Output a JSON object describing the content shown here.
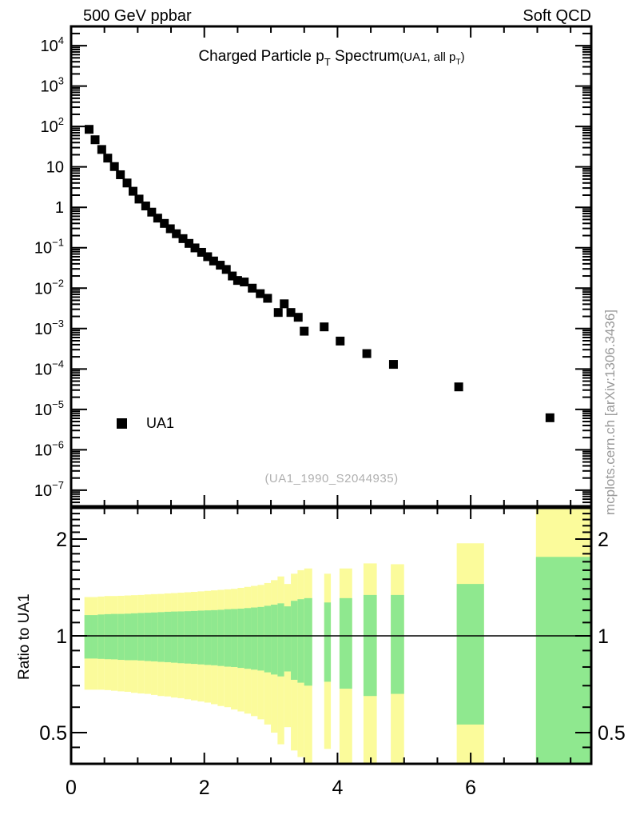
{
  "header": {
    "left": "500 GeV ppbar",
    "right": "Soft QCD"
  },
  "title": {
    "main": "Charged Particle p_T_ Spectrum",
    "note": "(UA1, all p_T_)"
  },
  "legend": {
    "label": "UA1"
  },
  "watermark": "(UA1_1990_S2044935)",
  "side_note": "mcplots.cern.ch [arXiv:1306.3436]",
  "ratio_axis_title": "Ratio to UA1",
  "colors": {
    "marker": "#000000",
    "band_inner": "#8fe88f",
    "band_outer": "#fbfb9b",
    "watermark": "#b0b0b0",
    "side_note": "#999999",
    "frame": "#000000"
  },
  "chart_data": {
    "type": "scatter",
    "title": "Charged Particle pT Spectrum (UA1, all pT)",
    "xlabel": "",
    "x_range": [
      0,
      7.81
    ],
    "x_axis": {
      "ticks": [
        0,
        2,
        4,
        6
      ],
      "tick_labels": [
        "0",
        "2",
        "4",
        "6"
      ],
      "minor_step": 0.5
    },
    "spectrum": {
      "y_scale": "log",
      "y_range": [
        4e-08,
        30000.0
      ],
      "y_tick_exponents": [
        4,
        3,
        2,
        1,
        0,
        -1,
        -2,
        -3,
        -4,
        -5,
        -6,
        -7
      ],
      "series": [
        {
          "name": "UA1",
          "marker": "square",
          "points": [
            [
              0.27,
              85
            ],
            [
              0.36,
              47
            ],
            [
              0.46,
              27
            ],
            [
              0.55,
              16.5
            ],
            [
              0.65,
              10.2
            ],
            [
              0.74,
              6.4
            ],
            [
              0.84,
              4.0
            ],
            [
              0.93,
              2.5
            ],
            [
              1.02,
              1.6
            ],
            [
              1.12,
              1.08
            ],
            [
              1.21,
              0.76
            ],
            [
              1.3,
              0.54
            ],
            [
              1.4,
              0.4
            ],
            [
              1.49,
              0.295
            ],
            [
              1.58,
              0.222
            ],
            [
              1.68,
              0.168
            ],
            [
              1.77,
              0.128
            ],
            [
              1.86,
              0.099
            ],
            [
              1.96,
              0.077
            ],
            [
              2.05,
              0.06
            ],
            [
              2.14,
              0.047
            ],
            [
              2.24,
              0.037
            ],
            [
              2.33,
              0.029
            ],
            [
              2.42,
              0.02
            ],
            [
              2.5,
              0.0155
            ],
            [
              2.6,
              0.0142
            ],
            [
              2.72,
              0.01
            ],
            [
              2.84,
              0.0073
            ],
            [
              2.95,
              0.0056
            ],
            [
              3.11,
              0.0025
            ],
            [
              3.2,
              0.0041
            ],
            [
              3.3,
              0.0025
            ],
            [
              3.41,
              0.0019
            ],
            [
              3.5,
              0.00086
            ],
            [
              3.8,
              0.0011
            ],
            [
              4.04,
              0.00049
            ],
            [
              4.44,
              0.00024
            ],
            [
              4.84,
              0.00013
            ],
            [
              5.82,
              3.6e-05
            ],
            [
              7.19,
              6.2e-06
            ]
          ]
        }
      ]
    },
    "ratio": {
      "y_scale": "log",
      "y_range": [
        0.4,
        2.5
      ],
      "y_ticks": [
        2,
        1,
        0.5
      ],
      "y_tick_labels": [
        "2",
        "1",
        "0.5"
      ],
      "y_minor_ticks": [
        0.45,
        0.6,
        0.7,
        0.8,
        0.9,
        1.1,
        1.2,
        1.3,
        1.4,
        1.5,
        1.6,
        1.7,
        1.8,
        1.9,
        2.1,
        2.2,
        2.3,
        2.4
      ],
      "reference_line": 1,
      "bands": [
        [
          0.2,
          0.3,
          0.68,
          1.32,
          0.85,
          1.16
        ],
        [
          0.3,
          0.4,
          0.68,
          1.32,
          0.85,
          1.16
        ],
        [
          0.4,
          0.5,
          0.68,
          1.325,
          0.848,
          1.165
        ],
        [
          0.5,
          0.6,
          0.678,
          1.33,
          0.846,
          1.168
        ],
        [
          0.6,
          0.7,
          0.675,
          1.33,
          0.845,
          1.17
        ],
        [
          0.7,
          0.8,
          0.672,
          1.332,
          0.842,
          1.17
        ],
        [
          0.8,
          0.9,
          0.67,
          1.335,
          0.84,
          1.172
        ],
        [
          0.9,
          1.0,
          0.665,
          1.338,
          0.84,
          1.175
        ],
        [
          1.0,
          1.1,
          0.662,
          1.34,
          0.838,
          1.178
        ],
        [
          1.1,
          1.2,
          0.66,
          1.345,
          0.835,
          1.18
        ],
        [
          1.2,
          1.3,
          0.655,
          1.348,
          0.833,
          1.182
        ],
        [
          1.3,
          1.4,
          0.65,
          1.35,
          0.83,
          1.185
        ],
        [
          1.4,
          1.5,
          0.648,
          1.355,
          0.828,
          1.188
        ],
        [
          1.5,
          1.6,
          0.643,
          1.358,
          0.825,
          1.19
        ],
        [
          1.6,
          1.7,
          0.64,
          1.362,
          0.822,
          1.191
        ],
        [
          1.7,
          1.8,
          0.635,
          1.366,
          0.82,
          1.193
        ],
        [
          1.8,
          1.9,
          0.63,
          1.37,
          0.818,
          1.195
        ],
        [
          1.9,
          2.0,
          0.625,
          1.375,
          0.815,
          1.198
        ],
        [
          2.0,
          2.1,
          0.62,
          1.38,
          0.812,
          1.2
        ],
        [
          2.1,
          2.2,
          0.613,
          1.385,
          0.81,
          1.202
        ],
        [
          2.2,
          2.3,
          0.605,
          1.39,
          0.806,
          1.205
        ],
        [
          2.3,
          2.4,
          0.6,
          1.395,
          0.802,
          1.21
        ],
        [
          2.4,
          2.5,
          0.59,
          1.4,
          0.8,
          1.212
        ],
        [
          2.5,
          2.6,
          0.582,
          1.41,
          0.795,
          1.215
        ],
        [
          2.6,
          2.7,
          0.573,
          1.42,
          0.79,
          1.22
        ],
        [
          2.7,
          2.8,
          0.563,
          1.43,
          0.785,
          1.225
        ],
        [
          2.8,
          2.9,
          0.55,
          1.44,
          0.78,
          1.23
        ],
        [
          2.9,
          3.0,
          0.53,
          1.46,
          0.77,
          1.24
        ],
        [
          3.0,
          3.1,
          0.5,
          1.49,
          0.758,
          1.25
        ],
        [
          3.1,
          3.2,
          0.46,
          1.53,
          0.748,
          1.262
        ],
        [
          3.2,
          3.3,
          0.52,
          1.45,
          0.775,
          1.235
        ],
        [
          3.3,
          3.4,
          0.44,
          1.56,
          0.73,
          1.285
        ],
        [
          3.4,
          3.5,
          0.42,
          1.6,
          0.715,
          1.3
        ],
        [
          3.5,
          3.62,
          0.4,
          1.62,
          0.7,
          1.31
        ],
        [
          3.8,
          3.9,
          0.445,
          1.56,
          0.72,
          1.27
        ],
        [
          4.03,
          4.22,
          0.4,
          1.62,
          0.685,
          1.31
        ],
        [
          4.39,
          4.59,
          0.4,
          1.68,
          0.65,
          1.34
        ],
        [
          4.8,
          5.0,
          0.4,
          1.67,
          0.66,
          1.34
        ],
        [
          5.79,
          6.2,
          0.4,
          1.94,
          0.53,
          1.45
        ],
        [
          6.98,
          7.81,
          0.4,
          2.5,
          0.4,
          1.76
        ]
      ]
    }
  }
}
